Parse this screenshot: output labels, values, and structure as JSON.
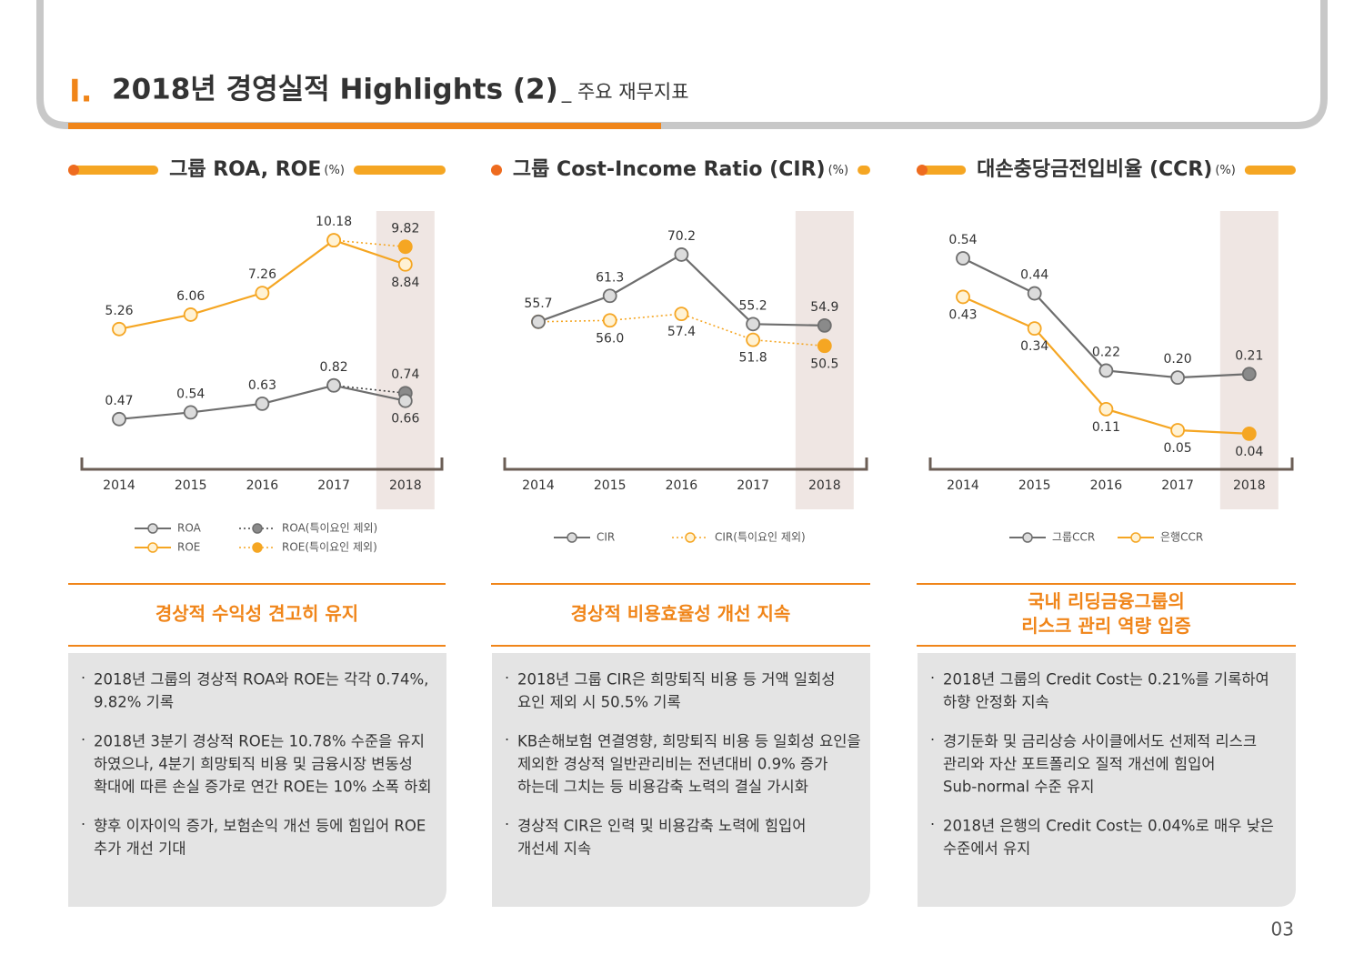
{
  "header": {
    "number": "I.",
    "title": "2018년 경영실적 Highlights (2)",
    "subtitle": "_ 주요 재무지표"
  },
  "chart_data": [
    {
      "type": "line",
      "title": "그룹 ROA, ROE",
      "unit": "(%)",
      "categories": [
        "2014",
        "2015",
        "2016",
        "2017",
        "2018"
      ],
      "ylim": [
        -1.7,
        11.9
      ],
      "y2lim": [
        0.1,
        2.65
      ],
      "series": [
        {
          "name": "ROA",
          "color": "#6e6e6e",
          "marker_fill": "#dcdcdc",
          "axis": "y2",
          "values": [
            0.47,
            0.54,
            0.63,
            0.82,
            0.66
          ]
        },
        {
          "name": "ROE",
          "color": "#f5a623",
          "marker_fill": "#fff2d4",
          "values": [
            5.26,
            6.06,
            7.26,
            10.18,
            8.84
          ]
        },
        {
          "name": "ROA(특이요인 제외)",
          "color": "#6e6e6e",
          "marker_fill": "#8a8a8a",
          "dotted": true,
          "axis": "y2",
          "values": [
            null,
            null,
            null,
            0.82,
            0.74
          ]
        },
        {
          "name": "ROE(특이요인 제외)",
          "color": "#f5a623",
          "marker_fill": "#f5a623",
          "dotted": true,
          "values": [
            null,
            null,
            null,
            10.18,
            9.82
          ]
        }
      ]
    },
    {
      "type": "line",
      "title": "그룹 Cost-Income Ratio (CIR)",
      "unit": "(%)",
      "categories": [
        "2014",
        "2015",
        "2016",
        "2017",
        "2018"
      ],
      "ylim": [
        27,
        80
      ],
      "series": [
        {
          "name": "CIR",
          "color": "#6e6e6e",
          "marker_fill": "#dcdcdc",
          "end_fill": "#8a8a8a",
          "values": [
            55.7,
            61.3,
            70.2,
            55.2,
            54.9
          ]
        },
        {
          "name": "CIR(특이요인 제외)",
          "color": "#f5a623",
          "marker_fill": "#fff2d4",
          "end_fill": "#f5a623",
          "dotted": true,
          "values": [
            55.7,
            56,
            57.4,
            51.8,
            50.5
          ],
          "value_labels": [
            "55.7",
            "56.0",
            "57.4",
            "51.8",
            "50.5"
          ]
        }
      ]
    },
    {
      "type": "line",
      "title": "대손충당금전입비율 (CCR)",
      "unit": "(%)",
      "categories": [
        "2014",
        "2015",
        "2016",
        "2017",
        "2018"
      ],
      "ylim": [
        -0.02,
        0.68
      ],
      "series": [
        {
          "name": "그룹CCR",
          "color": "#6e6e6e",
          "marker_fill": "#dcdcdc",
          "end_fill": "#8a8a8a",
          "values": [
            0.54,
            0.44,
            0.22,
            0.2,
            0.21
          ],
          "value_labels": [
            "0.54",
            "0.44",
            "0.22",
            "0.20",
            "0.21"
          ]
        },
        {
          "name": "은행CCR",
          "color": "#f5a623",
          "marker_fill": "#fff2d4",
          "end_fill": "#f5a623",
          "values": [
            0.43,
            0.34,
            0.11,
            0.05,
            0.04
          ]
        }
      ]
    }
  ],
  "panels": [
    {
      "heading": [
        "경상적 수익성 견고히 유지"
      ],
      "bullets": [
        [
          "2018년 그룹의 경상적 ROA와 ROE는 각각 0.74%,",
          "9.82% 기록"
        ],
        [
          "2018년 3분기 경상적 ROE는 10.78% 수준을 유지",
          "하였으나, 4분기 희망퇴직 비용 및 금융시장 변동성",
          "확대에 따른 손실 증가로 연간 ROE는 10% 소폭 하회"
        ],
        [
          "향후 이자이익 증가, 보험손익 개선 등에 힘입어 ROE",
          "추가 개선 기대"
        ]
      ]
    },
    {
      "heading": [
        "경상적 비용효율성 개선 지속"
      ],
      "bullets": [
        [
          "2018년 그룹 CIR은 희망퇴직 비용 등 거액 일회성",
          "요인 제외 시 50.5% 기록"
        ],
        [
          "KB손해보험 연결영향, 희망퇴직 비용 등 일회성 요인을",
          "제외한 경상적 일반관리비는 전년대비 0.9% 증가",
          "하는데 그치는 등 비용감축 노력의 결실 가시화"
        ],
        [
          "경상적 CIR은 인력 및 비용감축 노력에 힘입어",
          "개선세 지속"
        ]
      ]
    },
    {
      "heading": [
        "국내 리딩금융그룹의",
        "리스크 관리 역량 입증"
      ],
      "bullets": [
        [
          "2018년 그룹의 Credit Cost는 0.21%를 기록하여",
          "하향 안정화 지속"
        ],
        [
          "경기둔화 및 금리상승 사이클에서도 선제적 리스크",
          "관리와 자산 포트폴리오 질적 개선에 힘입어",
          " Sub-normal 수준 유지"
        ],
        [
          "2018년 은행의 Credit Cost는 0.04%로 매우 낮은",
          "수준에서 유지"
        ]
      ]
    }
  ],
  "page_number": "03"
}
